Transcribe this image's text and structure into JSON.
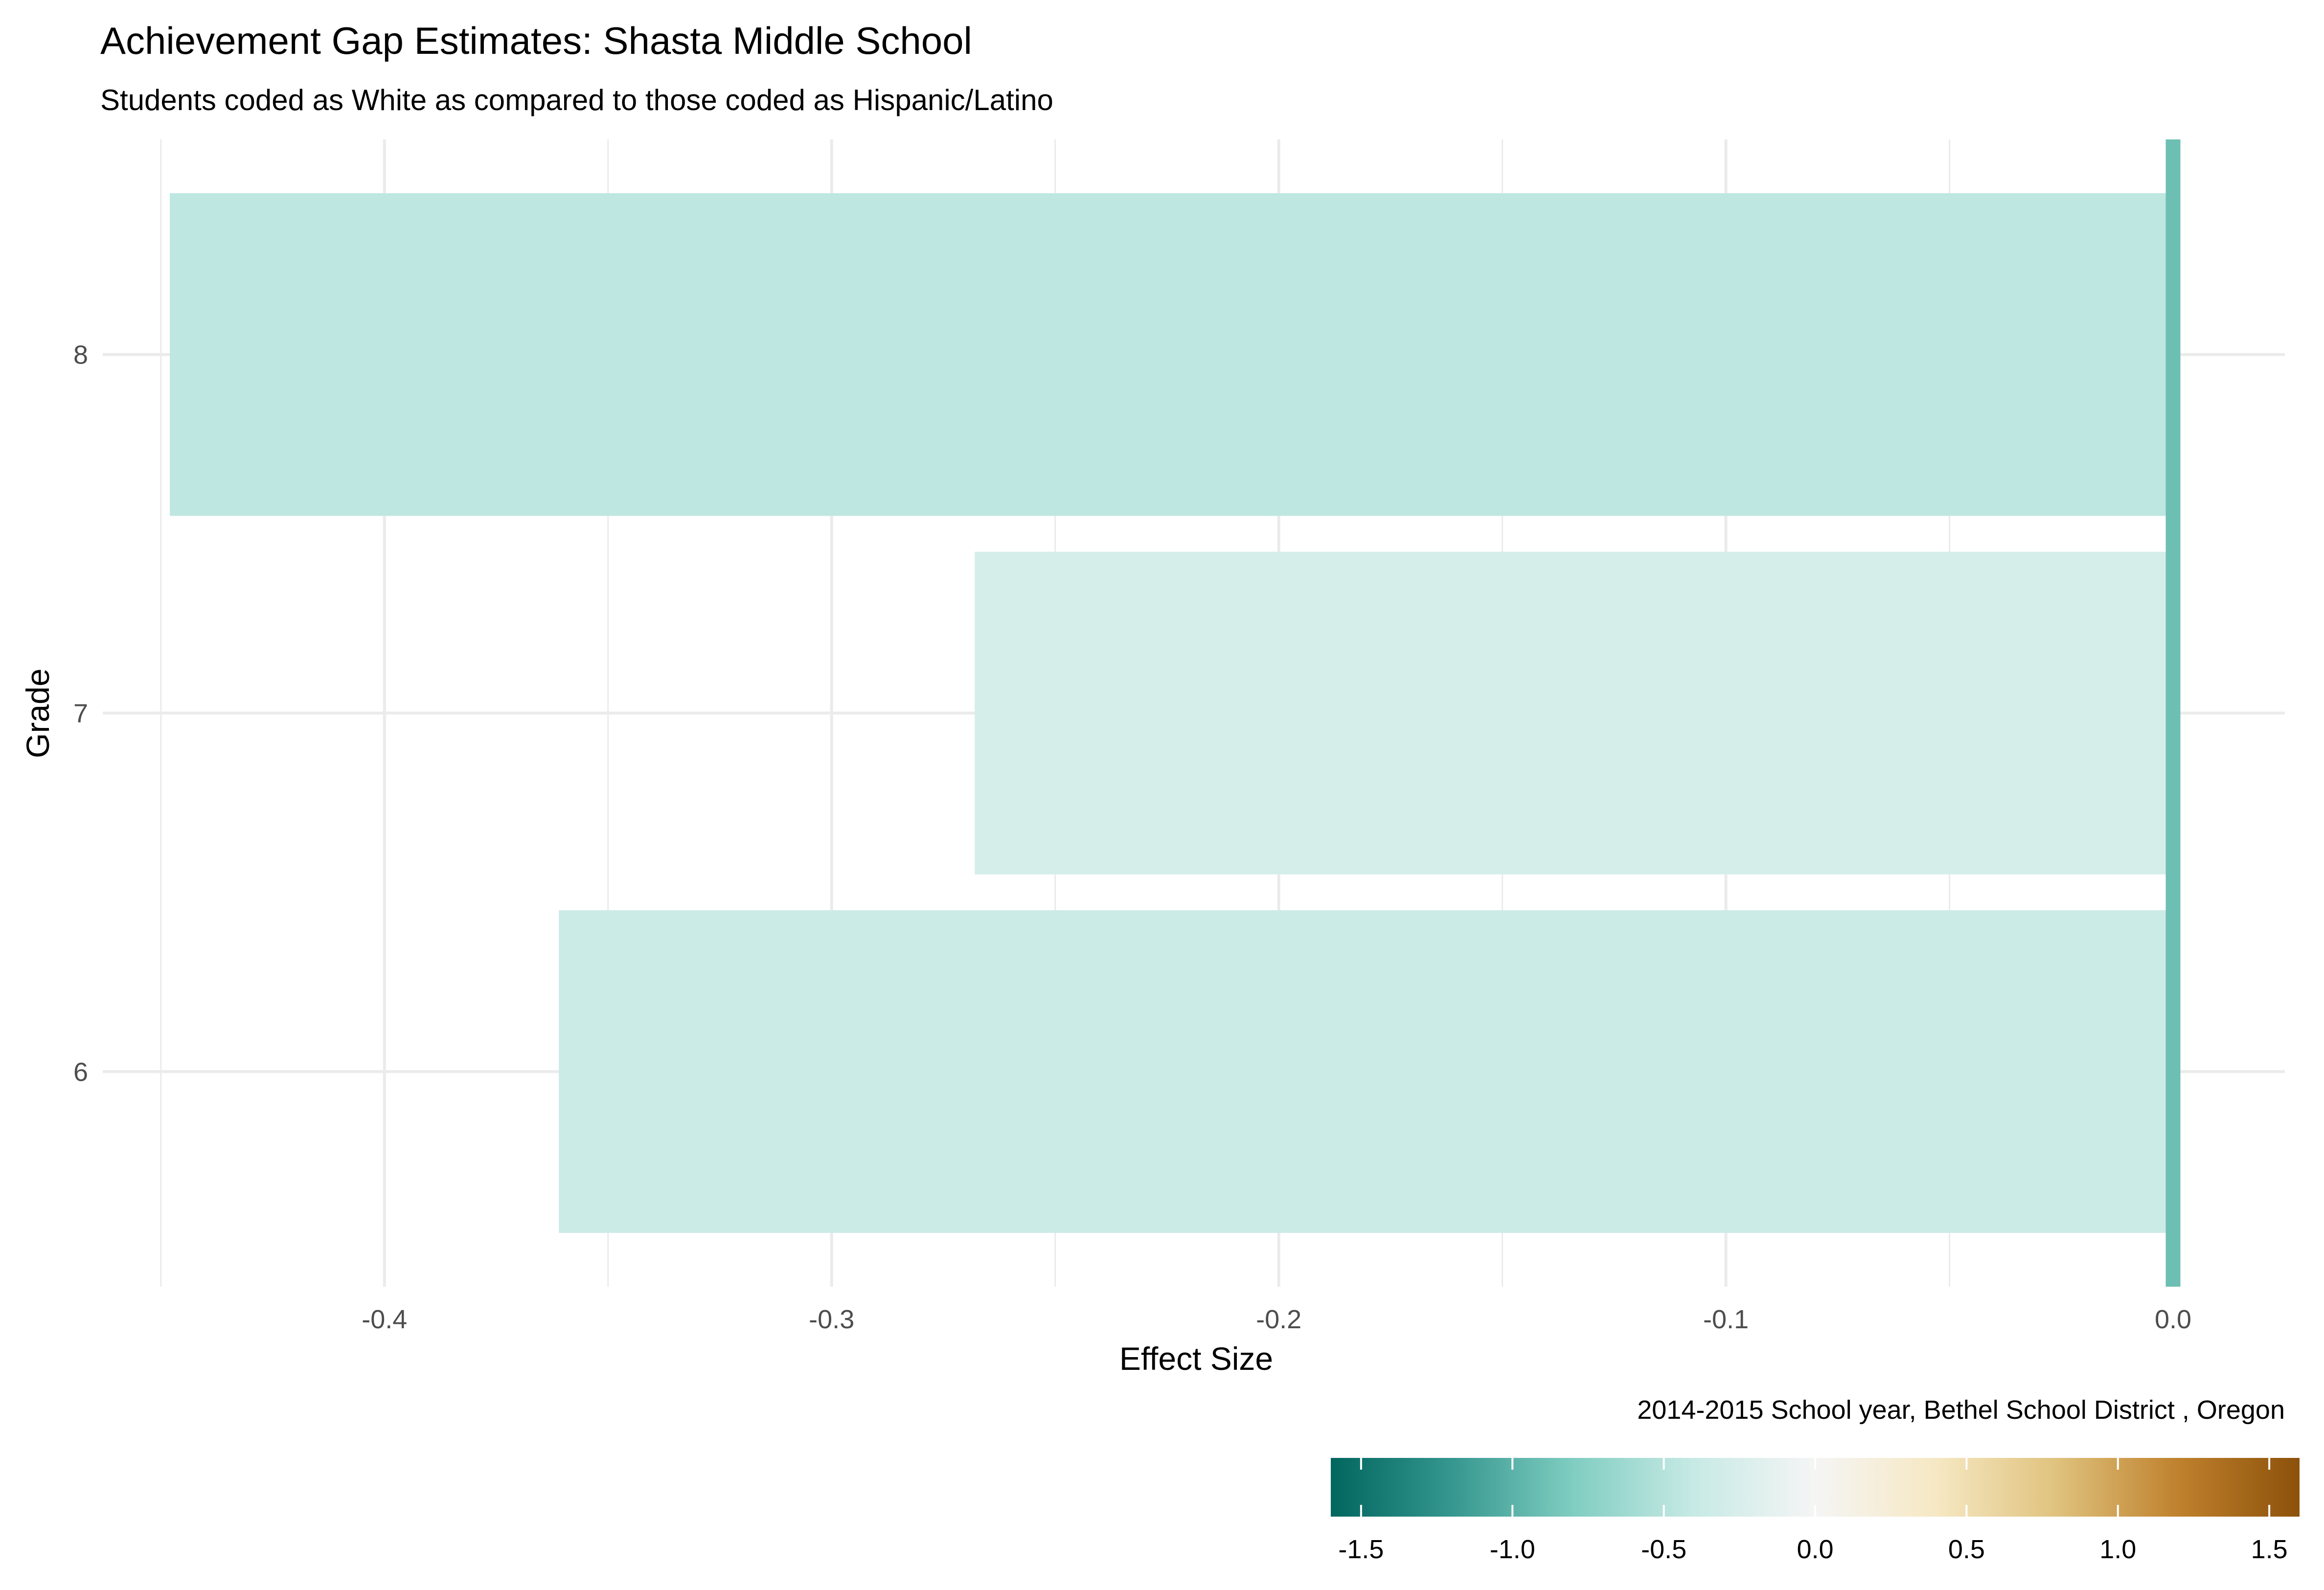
{
  "chart_data": {
    "type": "bar",
    "orientation": "horizontal",
    "title": "Achievement Gap Estimates: Shasta Middle School",
    "subtitle": "Students coded as White as compared to those coded as Hispanic/Latino",
    "xlabel": "Effect Size",
    "ylabel": "Grade",
    "caption": "2014-2015 School year,  Bethel School District , Oregon",
    "categories": [
      "6",
      "7",
      "8"
    ],
    "values": [
      -0.361,
      -0.268,
      -0.448
    ],
    "xlim": [
      -0.463,
      0.025
    ],
    "x_ticks": [
      -0.4,
      -0.3,
      -0.2,
      -0.1,
      0.0
    ],
    "x_tick_labels": [
      "-0.4",
      "-0.3",
      "-0.2",
      "-0.1",
      "0.0"
    ],
    "grid": true,
    "reference_line": {
      "x": 0.0,
      "color": "#6dbfb3"
    },
    "color_scale": {
      "palette": "BrBG",
      "limits": [
        -1.6,
        1.6
      ],
      "ticks": [
        -1.5,
        -1.0,
        -0.5,
        0.0,
        0.5,
        1.0,
        1.5
      ],
      "tick_labels": [
        "-1.5",
        "-1.0",
        "-0.5",
        "0.0",
        "0.5",
        "1.0",
        "1.5"
      ],
      "colors": [
        "#01665e",
        "#35978f",
        "#80cdc1",
        "#c7eae5",
        "#f5f5f5",
        "#f6e8c3",
        "#dfc27d",
        "#bf812d",
        "#8c510a"
      ],
      "position": "bottom-right"
    }
  }
}
